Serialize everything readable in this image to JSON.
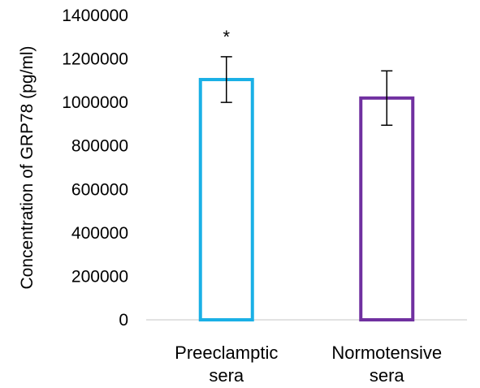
{
  "chart_data": {
    "type": "bar",
    "title": "",
    "xlabel": "",
    "ylabel": "Concentration of GRP78 (pg/ml)",
    "ylim": [
      0,
      1400000
    ],
    "y_ticks": [
      "0",
      "200000",
      "400000",
      "600000",
      "800000",
      "1000000",
      "1200000",
      "1400000"
    ],
    "grid": false,
    "categories": [
      "Preeclamptic sera",
      "Normotensive sera"
    ],
    "category_lines": [
      [
        "Preeclamptic",
        "sera"
      ],
      [
        "Normotensive",
        "sera"
      ]
    ],
    "values": [
      1105000,
      1020000
    ],
    "error_low": [
      1000000,
      895000
    ],
    "error_high": [
      1210000,
      1145000
    ],
    "bar_colors": [
      "#1ab0e6",
      "#7030a0"
    ],
    "bar_style": "outline",
    "annotations": [
      {
        "category": "Preeclamptic sera",
        "text": "*"
      }
    ]
  }
}
